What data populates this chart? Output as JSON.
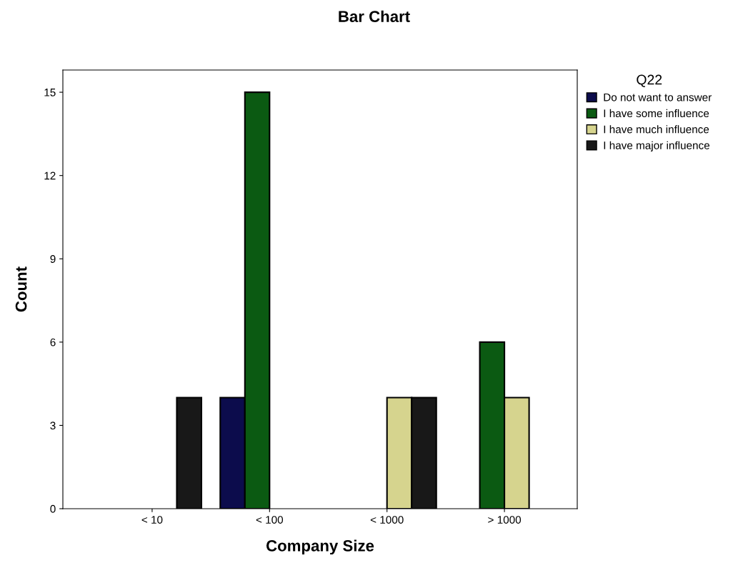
{
  "chart_data": {
    "type": "bar",
    "title": "Bar Chart",
    "xlabel": "Company Size",
    "ylabel": "Count",
    "legend_title": "Q22",
    "categories": [
      "< 10",
      "< 100",
      "< 1000",
      "> 1000"
    ],
    "series": [
      {
        "name": "Do not want to answer",
        "color": "#0c0c4c",
        "values": [
          0,
          4,
          0,
          0
        ]
      },
      {
        "name": "I have some influence",
        "color": "#0b5a12",
        "values": [
          0,
          15,
          0,
          6
        ]
      },
      {
        "name": "I have much influence",
        "color": "#d6d48e",
        "values": [
          0,
          0,
          4,
          4
        ]
      },
      {
        "name": "I have major influence",
        "color": "#181818",
        "values": [
          4,
          0,
          4,
          0
        ]
      }
    ],
    "ylim": [
      0,
      15.8
    ],
    "yticks": [
      0,
      3,
      6,
      9,
      12,
      15
    ],
    "grid": false,
    "legend": "top right"
  }
}
